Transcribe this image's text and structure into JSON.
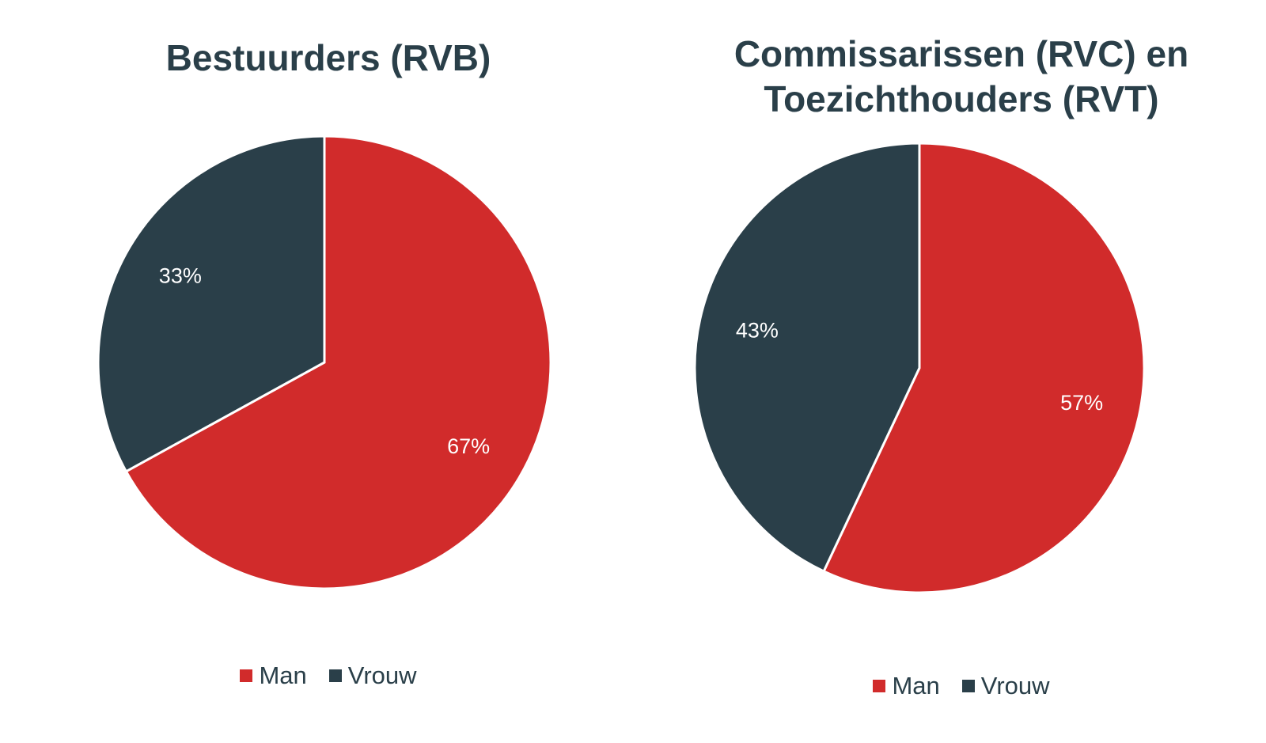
{
  "colors": {
    "man": "#d12b2b",
    "vrouw": "#2a3f49",
    "text": "#2a3f49"
  },
  "chart_data": [
    {
      "type": "pie",
      "title": "Bestuurders (RVB)",
      "series": [
        {
          "name": "Man",
          "value": 67,
          "label": "67%"
        },
        {
          "name": "Vrouw",
          "value": 33,
          "label": "33%"
        }
      ],
      "legend": {
        "position": "bottom",
        "items": [
          "Man",
          "Vrouw"
        ]
      }
    },
    {
      "type": "pie",
      "title": "Commissarissen (RVC) en Toezichthouders (RVT)",
      "series": [
        {
          "name": "Man",
          "value": 57,
          "label": "57%"
        },
        {
          "name": "Vrouw",
          "value": 43,
          "label": "43%"
        }
      ],
      "legend": {
        "position": "bottom",
        "items": [
          "Man",
          "Vrouw"
        ]
      }
    }
  ]
}
